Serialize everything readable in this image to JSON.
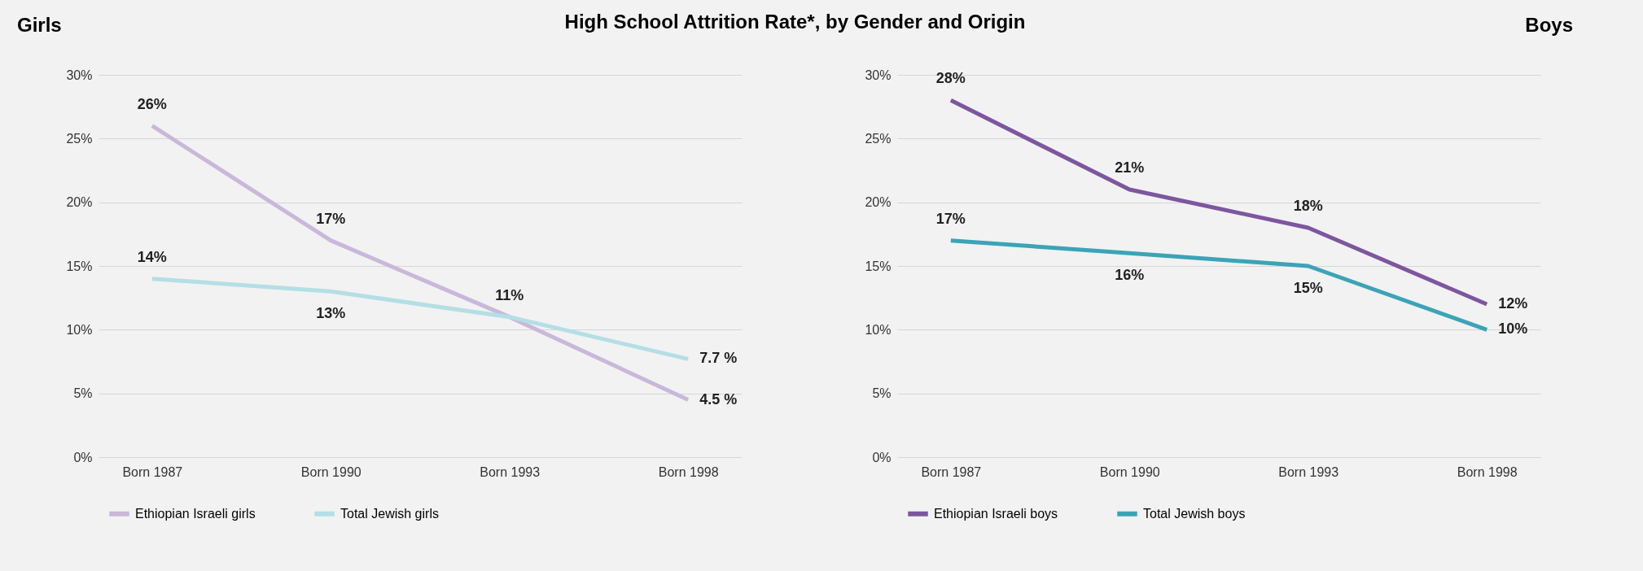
{
  "chart_data": [
    {
      "type": "line",
      "title": "Girls",
      "annotations": [
        "High School Attrition Rate*, by Gender and Origin"
      ],
      "categories": [
        "Born 1987",
        "Born 1990",
        "Born 1993",
        "Born 1998"
      ],
      "series": [
        {
          "name": "Ethiopian Israeli girls",
          "color": "#c9b8d9",
          "values": [
            26,
            17,
            11,
            4.5
          ],
          "value_labels": [
            "26%",
            "17%",
            "11%",
            "4.5 %"
          ]
        },
        {
          "name": "Total Jewish girls",
          "color": "#b3dfe5",
          "values": [
            14,
            13,
            11,
            7.7
          ],
          "value_labels": [
            "14%",
            "13%",
            null,
            "7.7 %"
          ]
        }
      ],
      "ylim": [
        0,
        30
      ],
      "yticks": [
        {
          "value": 0,
          "label": "0%"
        },
        {
          "value": 5,
          "label": "5%"
        },
        {
          "value": 10,
          "label": "10%"
        },
        {
          "value": 15,
          "label": "15%"
        },
        {
          "value": 20,
          "label": "20%"
        },
        {
          "value": 25,
          "label": "25%"
        },
        {
          "value": 30,
          "label": "30%"
        }
      ],
      "grid": "y",
      "legend": "bottom",
      "marker": "none",
      "line_style": "solid"
    },
    {
      "type": "line",
      "title": "Boys",
      "categories": [
        "Born 1987",
        "Born 1990",
        "Born 1993",
        "Born 1998"
      ],
      "series": [
        {
          "name": "Ethiopian Israeli boys",
          "color": "#7d569f",
          "values": [
            28,
            21,
            18,
            12
          ],
          "value_labels": [
            "28%",
            "21%",
            "18%",
            "12%"
          ]
        },
        {
          "name": "Total Jewish boys",
          "color": "#3ba4b6",
          "values": [
            17,
            16,
            15,
            10
          ],
          "value_labels": [
            "17%",
            "16%",
            "15%",
            "10%"
          ]
        }
      ],
      "ylim": [
        0,
        30
      ],
      "yticks": [
        {
          "value": 0,
          "label": "0%"
        },
        {
          "value": 5,
          "label": "5%"
        },
        {
          "value": 10,
          "label": "10%"
        },
        {
          "value": 15,
          "label": "15%"
        },
        {
          "value": 20,
          "label": "20%"
        },
        {
          "value": 25,
          "label": "25%"
        },
        {
          "value": 30,
          "label": "30%"
        }
      ],
      "grid": "y",
      "legend": "bottom",
      "marker": "none",
      "line_style": "solid"
    }
  ]
}
